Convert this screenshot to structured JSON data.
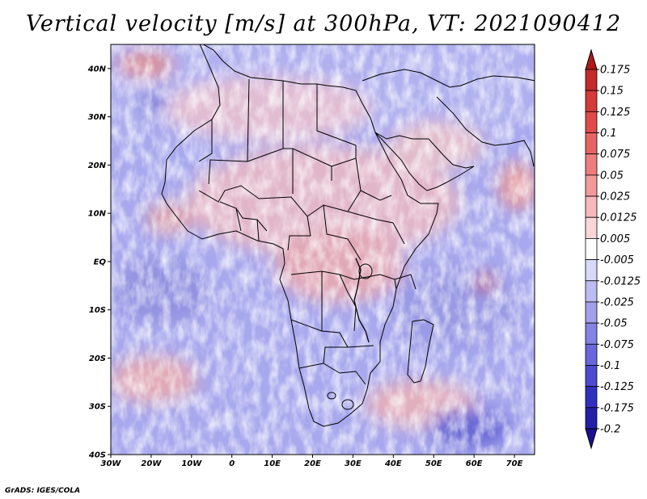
{
  "title": "Vertical velocity [m/s] at 300hPa, VT: 2021090412",
  "credit": "GrADS: IGES/COLA",
  "chart_data": {
    "type": "heatmap",
    "variable": "Vertical velocity",
    "units": "m/s",
    "level": "300hPa",
    "valid_time": "2021090412",
    "lon_range": [
      -30,
      75
    ],
    "lat_range": [
      -40,
      45
    ],
    "x_ticks": [
      {
        "value": -30,
        "label": "30W"
      },
      {
        "value": -20,
        "label": "20W"
      },
      {
        "value": -10,
        "label": "10W"
      },
      {
        "value": 0,
        "label": "0"
      },
      {
        "value": 10,
        "label": "10E"
      },
      {
        "value": 20,
        "label": "20E"
      },
      {
        "value": 30,
        "label": "30E"
      },
      {
        "value": 40,
        "label": "40E"
      },
      {
        "value": 50,
        "label": "50E"
      },
      {
        "value": 60,
        "label": "60E"
      },
      {
        "value": 70,
        "label": "70E"
      }
    ],
    "y_ticks": [
      {
        "value": 40,
        "label": "40N"
      },
      {
        "value": 30,
        "label": "30N"
      },
      {
        "value": 20,
        "label": "20N"
      },
      {
        "value": 10,
        "label": "10N"
      },
      {
        "value": 0,
        "label": "EQ"
      },
      {
        "value": -10,
        "label": "10S"
      },
      {
        "value": -20,
        "label": "20S"
      },
      {
        "value": -30,
        "label": "30S"
      },
      {
        "value": -40,
        "label": "40S"
      }
    ],
    "colorbar": {
      "labels": [
        "0.175",
        "0.15",
        "0.125",
        "0.1",
        "0.075",
        "0.05",
        "0.025",
        "0.0125",
        "0.005",
        "-0.005",
        "-0.0125",
        "-0.025",
        "-0.05",
        "-0.075",
        "-0.1",
        "-0.125",
        "-0.175",
        "-0.2"
      ],
      "colors": [
        "#b01818",
        "#c42a2a",
        "#d43a3a",
        "#e04a4a",
        "#e86464",
        "#ee7e7e",
        "#f29a9a",
        "#f6b8b8",
        "#fad6d6",
        "#ffffff",
        "#d8d8f8",
        "#bcbcf2",
        "#a0a0ec",
        "#8484e4",
        "#6868dc",
        "#4c4cd0",
        "#3030c0",
        "#2020a8",
        "#181090"
      ]
    }
  }
}
